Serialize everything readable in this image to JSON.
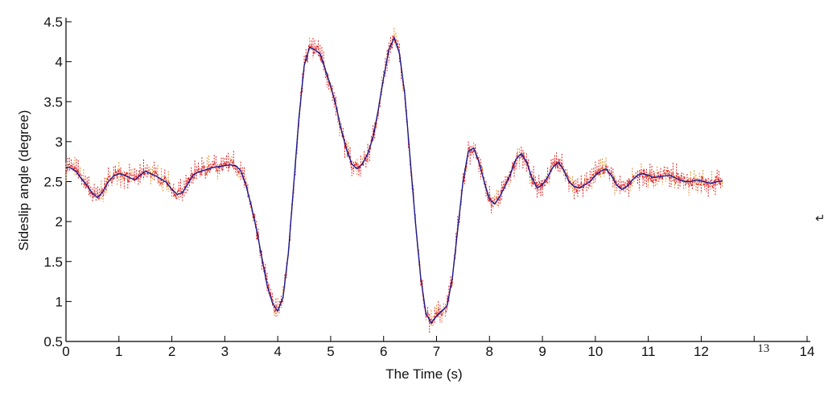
{
  "chart_data": {
    "type": "line",
    "title": "",
    "xlabel": "The Time (s)",
    "ylabel": "Sideslip angle (degree)",
    "xlim": [
      0,
      14
    ],
    "ylim": [
      0.5,
      4.5
    ],
    "x_ticks": [
      "0",
      "1",
      "2",
      "3",
      "4",
      "5",
      "6",
      "7",
      "8",
      "9",
      "10",
      "11",
      "12",
      "13",
      "14"
    ],
    "y_ticks": [
      "0.5",
      "1",
      "1.5",
      "2",
      "2.5",
      "3",
      "3.5",
      "4",
      "4.5"
    ],
    "legend": "none",
    "grid": false,
    "colors": {
      "reference": "#1a1a8c",
      "measured": "#e02020",
      "measured_alt": "#e08a1e"
    },
    "series": [
      {
        "x": [
          0,
          0.1,
          0.2,
          0.3,
          0.4,
          0.5,
          0.6,
          0.7,
          0.8,
          0.9,
          1.0,
          1.1,
          1.2,
          1.3,
          1.4,
          1.5,
          1.6,
          1.7,
          1.8,
          1.9,
          2.0,
          2.1,
          2.2,
          2.3,
          2.4,
          2.5,
          2.6,
          2.7,
          2.8,
          2.9,
          3.0,
          3.1,
          3.2,
          3.3,
          3.4,
          3.5,
          3.6,
          3.7,
          3.8,
          3.9,
          4.0,
          4.1,
          4.2,
          4.3,
          4.4,
          4.5,
          4.6,
          4.7,
          4.8,
          4.9,
          5.0,
          5.1,
          5.2,
          5.3,
          5.4,
          5.5,
          5.6,
          5.7,
          5.8,
          5.9,
          6.0,
          6.1,
          6.2,
          6.3,
          6.4,
          6.5,
          6.6,
          6.7,
          6.8,
          6.9,
          7.0,
          7.1,
          7.2,
          7.3,
          7.4,
          7.5,
          7.6,
          7.7,
          7.8,
          7.9,
          8.0,
          8.1,
          8.2,
          8.3,
          8.4,
          8.5,
          8.6,
          8.7,
          8.8,
          8.9,
          9.0,
          9.1,
          9.2,
          9.3,
          9.4,
          9.5,
          9.6,
          9.7,
          9.8,
          9.9,
          10.0,
          10.1,
          10.2,
          10.3,
          10.4,
          10.5,
          10.6,
          10.7,
          10.8,
          10.9,
          11.0,
          11.1,
          11.2,
          11.3,
          11.4,
          11.5,
          11.6,
          11.7,
          11.8,
          11.9,
          12.0,
          12.1,
          12.2,
          12.3,
          12.4
        ],
        "values": [
          2.68,
          2.67,
          2.62,
          2.53,
          2.45,
          2.35,
          2.3,
          2.38,
          2.5,
          2.57,
          2.6,
          2.58,
          2.55,
          2.52,
          2.58,
          2.63,
          2.6,
          2.57,
          2.53,
          2.49,
          2.4,
          2.34,
          2.36,
          2.47,
          2.58,
          2.62,
          2.64,
          2.66,
          2.68,
          2.69,
          2.7,
          2.71,
          2.7,
          2.64,
          2.45,
          2.2,
          1.9,
          1.55,
          1.2,
          0.98,
          0.88,
          1.05,
          1.6,
          2.45,
          3.3,
          3.95,
          4.18,
          4.15,
          4.1,
          3.9,
          3.7,
          3.45,
          3.15,
          2.9,
          2.72,
          2.66,
          2.72,
          2.85,
          3.05,
          3.4,
          3.8,
          4.15,
          4.3,
          4.1,
          3.6,
          2.8,
          2.0,
          1.3,
          0.85,
          0.73,
          0.82,
          0.88,
          0.95,
          1.3,
          1.9,
          2.5,
          2.88,
          2.92,
          2.75,
          2.5,
          2.28,
          2.22,
          2.32,
          2.45,
          2.6,
          2.78,
          2.85,
          2.75,
          2.55,
          2.42,
          2.46,
          2.56,
          2.68,
          2.74,
          2.65,
          2.5,
          2.44,
          2.42,
          2.46,
          2.5,
          2.58,
          2.63,
          2.66,
          2.58,
          2.46,
          2.4,
          2.44,
          2.52,
          2.58,
          2.6,
          2.58,
          2.55,
          2.56,
          2.57,
          2.58,
          2.55,
          2.52,
          2.5,
          2.5,
          2.52,
          2.51,
          2.49,
          2.48,
          2.5,
          2.51
        ],
        "_note": ""
      }
    ]
  }
}
